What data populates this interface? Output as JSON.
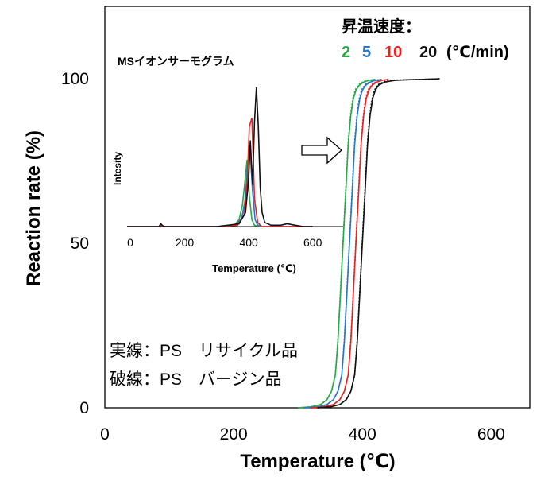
{
  "chart_data": [
    {
      "type": "line",
      "xlabel": "Temperature (℃)",
      "ylabel": "Reaction rate (%)",
      "xlim": [
        0,
        660
      ],
      "ylim": [
        0,
        122
      ],
      "xticks": [
        "0",
        "200",
        "400",
        "600"
      ],
      "yticks": [
        "0",
        "50",
        "100"
      ],
      "legend_title": "昇温速度：",
      "legend_unit": "(℃/min)",
      "series": [
        {
          "name": "2",
          "color": "#22aa44",
          "solid_x": [
            300,
            320,
            335,
            345,
            352,
            358,
            362,
            366,
            370,
            374,
            378,
            382,
            386,
            390,
            395,
            402,
            410,
            420
          ],
          "solid_y": [
            0,
            0.3,
            1,
            2.5,
            5,
            10,
            20,
            35,
            50,
            65,
            80,
            89,
            94,
            96.5,
            98,
            99,
            99.5,
            99.8
          ],
          "dashed_x": [
            300,
            320,
            335,
            345,
            352,
            358,
            362,
            366,
            370,
            374,
            378,
            382,
            386,
            390,
            395,
            402,
            410,
            420
          ],
          "dashed_y": [
            0,
            0.3,
            1,
            2.5,
            5,
            10,
            21,
            36,
            51,
            66,
            81,
            90,
            95,
            97,
            98.3,
            99.2,
            99.6,
            99.8
          ]
        },
        {
          "name": "5",
          "color": "#2277cc",
          "solid_x": [
            310,
            330,
            345,
            355,
            362,
            368,
            372,
            376,
            380,
            384,
            388,
            392,
            396,
            400,
            405,
            412,
            420,
            430
          ],
          "solid_y": [
            0,
            0.3,
            1,
            2.5,
            5,
            10,
            20,
            35,
            50,
            65,
            80,
            89,
            94,
            96.5,
            98,
            99,
            99.5,
            99.8
          ],
          "dashed_x": [
            310,
            330,
            345,
            355,
            362,
            368,
            372,
            376,
            380,
            384,
            388,
            392,
            396,
            400,
            405,
            412,
            420,
            430
          ],
          "dashed_y": [
            0,
            0.3,
            1,
            2.5,
            5,
            10,
            21,
            36,
            51,
            66,
            81,
            90,
            95,
            97,
            98.3,
            99.2,
            99.6,
            99.8
          ]
        },
        {
          "name": "10",
          "color": "#e82020",
          "solid_x": [
            320,
            340,
            355,
            365,
            372,
            378,
            382,
            386,
            390,
            394,
            398,
            402,
            406,
            410,
            415,
            422,
            430,
            440
          ],
          "solid_y": [
            0,
            0.3,
            1,
            2.5,
            5,
            10,
            20,
            35,
            50,
            65,
            80,
            89,
            94,
            96.5,
            98,
            99,
            99.5,
            99.8
          ],
          "dashed_x": [
            320,
            340,
            355,
            365,
            372,
            378,
            382,
            386,
            390,
            394,
            398,
            402,
            406,
            410,
            415,
            422,
            430,
            440
          ],
          "dashed_y": [
            0,
            0.3,
            1,
            2.5,
            5,
            10,
            21,
            36,
            51,
            66,
            81,
            90,
            95,
            97,
            98.3,
            99.2,
            99.6,
            99.8
          ]
        },
        {
          "name": "20",
          "color": "#111111",
          "solid_x": [
            330,
            350,
            365,
            375,
            382,
            388,
            392,
            396,
            400,
            404,
            408,
            412,
            416,
            420,
            425,
            435,
            450,
            470,
            490,
            520
          ],
          "solid_y": [
            0,
            0.3,
            1,
            2.5,
            5,
            10,
            20,
            35,
            50,
            65,
            80,
            89,
            94,
            96.5,
            98,
            99,
            99.5,
            99.7,
            99.8,
            100
          ],
          "dashed_x": [
            330,
            350,
            365,
            375,
            382,
            388,
            392,
            396,
            400,
            404,
            408,
            412,
            416,
            420,
            425,
            435,
            450,
            470,
            490,
            520
          ],
          "dashed_y": [
            0,
            0.3,
            1,
            2.5,
            5,
            10,
            21,
            36,
            51,
            66,
            81,
            90,
            95,
            97,
            98.3,
            99.2,
            99.6,
            99.7,
            99.8,
            100
          ]
        }
      ],
      "annotations": [
        "実線：PS　リサイクル品",
        "破線：PS　バージン品"
      ]
    },
    {
      "type": "line",
      "title": "MSイオンサーモグラム",
      "xlabel": "Temperature (℃)",
      "ylabel": "Intesity",
      "xlim": [
        20,
        700
      ],
      "ylim": [
        0,
        100
      ],
      "xticks": [
        "0",
        "200",
        "400",
        "600"
      ],
      "series": [
        {
          "name": "2",
          "color": "#22aa44",
          "x": [
            20,
            120,
            125,
            130,
            135,
            300,
            355,
            370,
            380,
            388,
            395,
            402,
            410,
            418,
            425,
            440,
            520,
            600
          ],
          "y": [
            0,
            0,
            1,
            0.5,
            0,
            0,
            1,
            5,
            15,
            32,
            48,
            22,
            5,
            1,
            0.5,
            0,
            0,
            0
          ]
        },
        {
          "name": "5",
          "color": "#2277cc",
          "x": [
            20,
            120,
            125,
            130,
            135,
            300,
            360,
            378,
            388,
            396,
            404,
            412,
            420,
            428,
            440,
            520,
            600
          ],
          "y": [
            0,
            0,
            1,
            0.5,
            0,
            0,
            1,
            6,
            18,
            42,
            56,
            25,
            5,
            1,
            0,
            0,
            0
          ]
        },
        {
          "name": "10",
          "color": "#e82020",
          "x": [
            20,
            120,
            125,
            130,
            135,
            300,
            365,
            385,
            395,
            402,
            410,
            418,
            428,
            440,
            520,
            600
          ],
          "y": [
            0,
            0,
            1,
            0.5,
            0,
            0,
            1,
            8,
            30,
            72,
            78,
            20,
            3,
            0,
            0,
            0
          ]
        },
        {
          "name": "20",
          "color": "#111111",
          "x": [
            20,
            120,
            125,
            130,
            135,
            300,
            370,
            390,
            400,
            405,
            412,
            418,
            424,
            430,
            436,
            442,
            450,
            470,
            500,
            520,
            545,
            570,
            600
          ],
          "y": [
            0,
            0,
            2,
            1,
            0,
            0,
            2,
            10,
            35,
            62,
            30,
            75,
            100,
            72,
            28,
            10,
            3,
            1,
            1,
            2,
            1,
            0,
            0
          ]
        }
      ]
    }
  ]
}
